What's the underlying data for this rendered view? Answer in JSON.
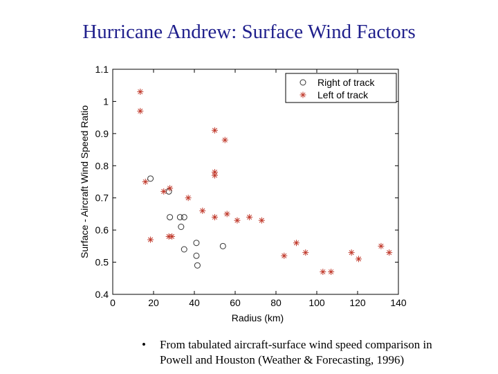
{
  "slide": {
    "title": "Hurricane Andrew: Surface Wind Factors",
    "caption_bullet": "•",
    "caption_line1": "From tabulated aircraft-surface wind speed comparison in",
    "caption_line2": "Powell and Houston (Weather & Forecasting, 1996)"
  },
  "chart_data": {
    "type": "scatter",
    "title": "",
    "xlabel": "Radius (km)",
    "ylabel": "Surface - Aircraft Wind Speed Ratio",
    "xlim": [
      0,
      140
    ],
    "ylim": [
      0.4,
      1.1
    ],
    "xticks": [
      "0",
      "20",
      "40",
      "60",
      "80",
      "100",
      "120",
      "140"
    ],
    "yticks": [
      "0.4",
      "0.5",
      "0.6",
      "0.7",
      "0.8",
      "0.9",
      "1",
      "1.1"
    ],
    "grid": false,
    "legend_position": "top-right",
    "series": [
      {
        "name": "Right of track",
        "marker": "circle",
        "color": "#333333",
        "points": [
          [
            18.5,
            0.76
          ],
          [
            27.5,
            0.72
          ],
          [
            28,
            0.64
          ],
          [
            33,
            0.64
          ],
          [
            35,
            0.64
          ],
          [
            33.5,
            0.61
          ],
          [
            35,
            0.54
          ],
          [
            41,
            0.56
          ],
          [
            41,
            0.52
          ],
          [
            41.5,
            0.49
          ],
          [
            54,
            0.55
          ]
        ]
      },
      {
        "name": "Left of track",
        "marker": "asterisk",
        "color": "#c0392b",
        "points": [
          [
            13.5,
            1.03
          ],
          [
            13.5,
            0.97
          ],
          [
            16,
            0.75
          ],
          [
            18.5,
            0.57
          ],
          [
            25,
            0.72
          ],
          [
            28,
            0.73
          ],
          [
            27.5,
            0.58
          ],
          [
            29,
            0.58
          ],
          [
            37,
            0.7
          ],
          [
            44,
            0.66
          ],
          [
            50,
            0.91
          ],
          [
            50,
            0.78
          ],
          [
            50,
            0.77
          ],
          [
            50,
            0.64
          ],
          [
            55,
            0.88
          ],
          [
            56,
            0.65
          ],
          [
            61,
            0.63
          ],
          [
            67,
            0.64
          ],
          [
            73,
            0.63
          ],
          [
            84,
            0.52
          ],
          [
            90,
            0.56
          ],
          [
            94.5,
            0.53
          ],
          [
            103,
            0.47
          ],
          [
            107,
            0.47
          ],
          [
            117,
            0.53
          ],
          [
            120.5,
            0.51
          ],
          [
            131.5,
            0.55
          ],
          [
            135.5,
            0.53
          ]
        ]
      }
    ]
  }
}
